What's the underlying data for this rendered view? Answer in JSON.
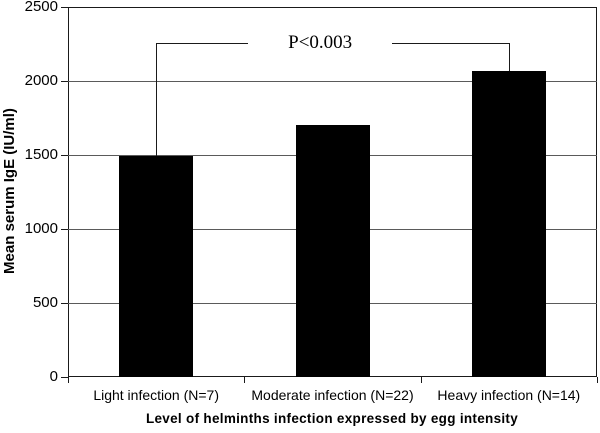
{
  "figure": {
    "background": "#ffffff"
  },
  "chart_data": {
    "type": "bar",
    "title": "",
    "xlabel": "Level of helminths infection expressed by  egg intensity",
    "ylabel": "Mean serum IgE (IU/ml)",
    "categories": [
      "Light infection (N=7)",
      "Moderate infection (N=22)",
      "Heavy infection  (N=14)"
    ],
    "values": [
      1490,
      1700,
      2070
    ],
    "ylim": [
      0,
      2500
    ],
    "yticks": [
      0,
      500,
      1000,
      1500,
      2000,
      2500
    ],
    "grid": true,
    "legend": "none",
    "bar_color": "#000000",
    "gridline_color": "#5a5a5a",
    "axis_color": "#1a1a1a",
    "annotation": {
      "type": "significance-bracket",
      "label": "P<0.003",
      "between_categories": [
        "Light infection (N=7)",
        "Heavy infection  (N=14)"
      ],
      "bracket_y_value": 2260
    }
  }
}
